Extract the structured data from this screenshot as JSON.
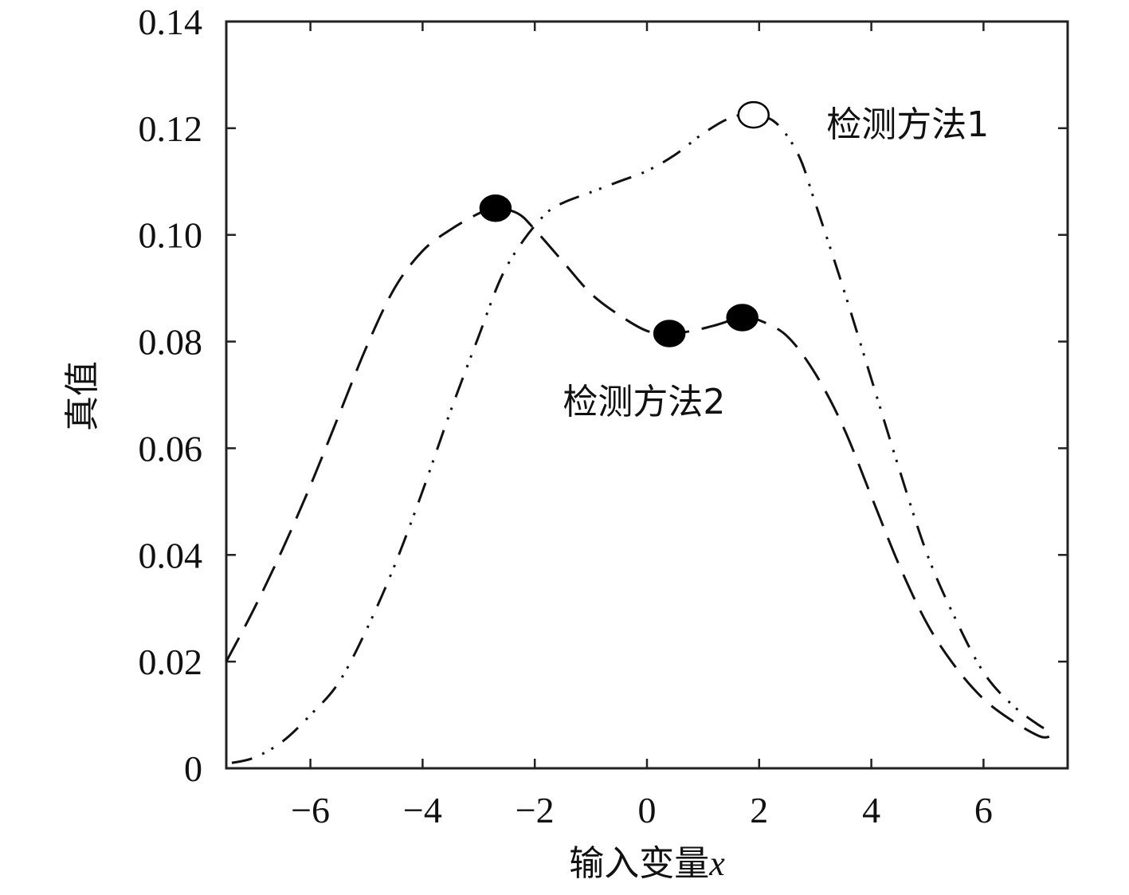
{
  "chart_data": {
    "type": "line",
    "title": "",
    "xlabel": "输入变量",
    "xlabel_var": "x",
    "ylabel": "真值",
    "xlim": [
      -7.5,
      7.5
    ],
    "ylim": [
      0,
      0.14
    ],
    "x_ticks": [
      {
        "value": -6,
        "label": "−6"
      },
      {
        "value": -4,
        "label": "−4"
      },
      {
        "value": -2,
        "label": "−2"
      },
      {
        "value": 0,
        "label": "0"
      },
      {
        "value": 2,
        "label": "2"
      },
      {
        "value": 4,
        "label": "4"
      },
      {
        "value": 6,
        "label": "6"
      }
    ],
    "y_ticks": [
      {
        "value": 0,
        "label": "0"
      },
      {
        "value": 0.02,
        "label": "0.02"
      },
      {
        "value": 0.04,
        "label": "0.04"
      },
      {
        "value": 0.06,
        "label": "0.06"
      },
      {
        "value": 0.08,
        "label": "0.08"
      },
      {
        "value": 0.1,
        "label": "0.10"
      },
      {
        "value": 0.12,
        "label": "0.12"
      },
      {
        "value": 0.14,
        "label": "0.14"
      }
    ],
    "grid": false,
    "series": [
      {
        "name": "检测方法1",
        "style": "dash-dot-dot",
        "color": "#111111",
        "x": [
          -7.4,
          -7.0,
          -6.5,
          -6.0,
          -5.5,
          -5.0,
          -4.5,
          -4.0,
          -3.5,
          -3.0,
          -2.6,
          -2.2,
          -1.8,
          -1.5,
          -1.0,
          -0.5,
          0.0,
          0.5,
          1.0,
          1.5,
          1.9,
          2.3,
          2.7,
          3.0,
          3.5,
          4.0,
          4.5,
          5.0,
          5.5,
          6.0,
          6.5,
          7.0,
          7.2
        ],
        "y": [
          0.001,
          0.002,
          0.005,
          0.01,
          0.016,
          0.026,
          0.038,
          0.052,
          0.067,
          0.081,
          0.092,
          0.099,
          0.104,
          0.106,
          0.108,
          0.11,
          0.112,
          0.115,
          0.119,
          0.122,
          0.1225,
          0.121,
          0.115,
          0.106,
          0.09,
          0.073,
          0.056,
          0.04,
          0.028,
          0.018,
          0.012,
          0.008,
          0.007
        ]
      },
      {
        "name": "检测方法2",
        "style": "dashed",
        "color": "#111111",
        "x": [
          -7.5,
          -7.0,
          -6.5,
          -6.0,
          -5.5,
          -5.0,
          -4.5,
          -4.0,
          -3.5,
          -3.0,
          -2.7,
          -2.3,
          -2.0,
          -1.5,
          -1.0,
          -0.5,
          0.0,
          0.4,
          0.8,
          1.2,
          1.7,
          2.0,
          2.5,
          3.0,
          3.5,
          4.0,
          4.5,
          5.0,
          5.5,
          6.0,
          6.5,
          7.0,
          7.2
        ],
        "y": [
          0.02,
          0.03,
          0.041,
          0.053,
          0.066,
          0.079,
          0.09,
          0.097,
          0.101,
          0.104,
          0.105,
          0.104,
          0.101,
          0.095,
          0.089,
          0.085,
          0.082,
          0.0815,
          0.082,
          0.083,
          0.0845,
          0.084,
          0.081,
          0.074,
          0.064,
          0.051,
          0.038,
          0.027,
          0.019,
          0.013,
          0.009,
          0.006,
          0.006
        ]
      }
    ],
    "markers": [
      {
        "x": -2.7,
        "y": 0.105,
        "filled": true
      },
      {
        "x": 0.4,
        "y": 0.0815,
        "filled": true
      },
      {
        "x": 1.7,
        "y": 0.0845,
        "filled": true
      },
      {
        "x": 1.9,
        "y": 0.1225,
        "filled": false
      }
    ],
    "annotations": [
      {
        "text": "检测方法1",
        "x": 3.2,
        "y": 0.1185
      },
      {
        "text": "检测方法2",
        "x": -1.5,
        "y": 0.0665
      }
    ]
  }
}
